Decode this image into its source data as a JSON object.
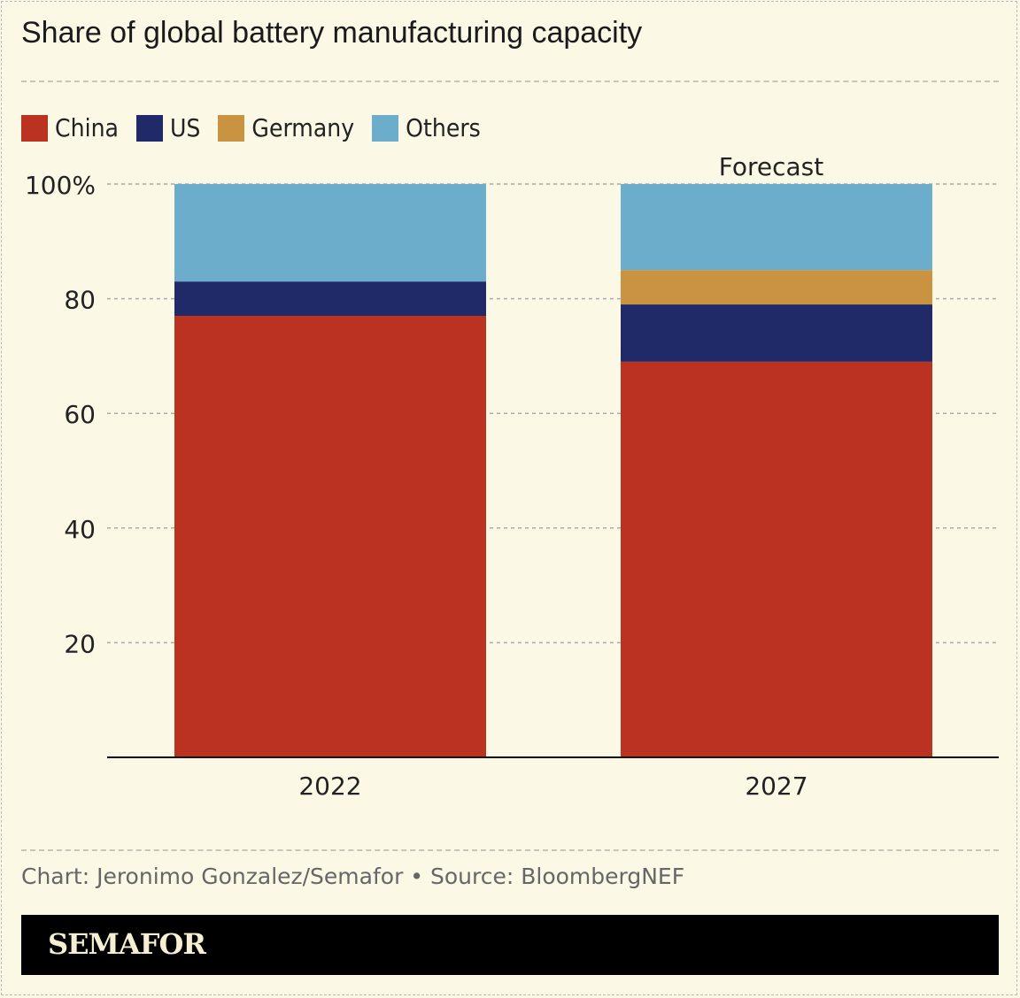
{
  "title": "Share of global battery manufacturing capacity",
  "credit": "Chart: Jeronimo Gonzalez/Semafor • Source: BloombergNEF",
  "brand": "SEMAFOR",
  "chart_data": {
    "type": "bar",
    "stacked": true,
    "categories": [
      "2022",
      "2027"
    ],
    "series": [
      {
        "name": "China",
        "color": "#bc3221",
        "values": [
          77,
          69
        ]
      },
      {
        "name": "US",
        "color": "#202a69",
        "values": [
          6,
          10
        ]
      },
      {
        "name": "Germany",
        "color": "#c99342",
        "values": [
          0,
          6
        ]
      },
      {
        "name": "Others",
        "color": "#6badca",
        "values": [
          17,
          15
        ]
      }
    ],
    "ylim": [
      0,
      100
    ],
    "yticks": [
      20,
      40,
      60,
      80,
      100
    ],
    "ytick_labels": [
      "20",
      "40",
      "60",
      "80",
      "100%"
    ],
    "grid": true,
    "legend": "top-left",
    "annotations": [
      {
        "category": "2027",
        "text": "Forecast"
      }
    ]
  }
}
